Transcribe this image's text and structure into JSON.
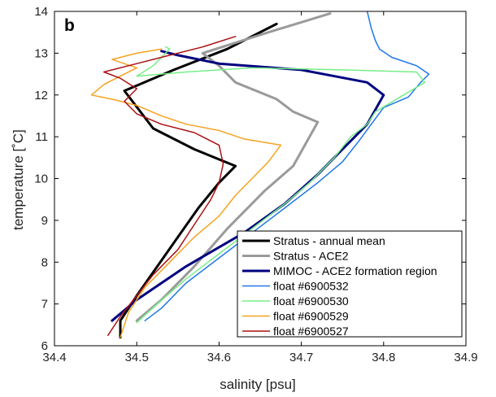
{
  "chart_data": {
    "type": "line",
    "panel_label": "b",
    "xlabel": "salinity [psu]",
    "ylabel": "temperature [˚C]",
    "xlim": [
      34.4,
      34.9
    ],
    "ylim": [
      6,
      14
    ],
    "xticks": [
      "34.4",
      "34.5",
      "34.6",
      "34.7",
      "34.8",
      "34.9"
    ],
    "yticks": [
      "6",
      "7",
      "8",
      "9",
      "10",
      "11",
      "12",
      "13",
      "14"
    ],
    "grid": false,
    "legend_position": "bottom-right",
    "series": [
      {
        "name": "Stratus - annual mean",
        "color": "#000000",
        "width": 3,
        "points": [
          [
            34.48,
            6.2
          ],
          [
            34.48,
            6.6
          ],
          [
            34.5,
            7.2
          ],
          [
            34.525,
            7.9
          ],
          [
            34.55,
            8.6
          ],
          [
            34.575,
            9.3
          ],
          [
            34.6,
            9.9
          ],
          [
            34.62,
            10.3
          ],
          [
            34.57,
            10.7
          ],
          [
            34.52,
            11.2
          ],
          [
            34.485,
            12.1
          ],
          [
            34.545,
            12.6
          ],
          [
            34.61,
            13.1
          ],
          [
            34.67,
            13.7
          ]
        ]
      },
      {
        "name": "Stratus - ACE2",
        "color": "#9a9a9a",
        "width": 3,
        "points": [
          [
            34.5,
            6.6
          ],
          [
            34.53,
            7.1
          ],
          [
            34.57,
            7.9
          ],
          [
            34.61,
            8.8
          ],
          [
            34.655,
            9.7
          ],
          [
            34.69,
            10.3
          ],
          [
            34.7,
            10.65
          ],
          [
            34.72,
            11.35
          ],
          [
            34.69,
            11.6
          ],
          [
            34.67,
            11.9
          ],
          [
            34.62,
            12.3
          ],
          [
            34.6,
            12.7
          ],
          [
            34.58,
            13.0
          ],
          [
            34.66,
            13.5
          ],
          [
            34.735,
            13.95
          ]
        ]
      },
      {
        "name": "MIMOC - ACE2 formation region",
        "color": "#00007f",
        "width": 3,
        "points": [
          [
            34.47,
            6.6
          ],
          [
            34.5,
            7.1
          ],
          [
            34.56,
            7.9
          ],
          [
            34.63,
            8.7
          ],
          [
            34.68,
            9.4
          ],
          [
            34.72,
            10.1
          ],
          [
            34.75,
            10.7
          ],
          [
            34.78,
            11.3
          ],
          [
            34.8,
            12.0
          ],
          [
            34.78,
            12.3
          ],
          [
            34.7,
            12.6
          ],
          [
            34.6,
            12.75
          ],
          [
            34.55,
            12.95
          ],
          [
            34.53,
            13.05
          ]
        ]
      },
      {
        "name": "float #6900532",
        "color": "#1f77e8",
        "width": 1.5,
        "points": [
          [
            34.51,
            6.6
          ],
          [
            34.53,
            6.9
          ],
          [
            34.56,
            7.5
          ],
          [
            34.6,
            8.1
          ],
          [
            34.64,
            8.7
          ],
          [
            34.68,
            9.3
          ],
          [
            34.72,
            9.9
          ],
          [
            34.75,
            10.4
          ],
          [
            34.77,
            10.9
          ],
          [
            34.785,
            11.3
          ],
          [
            34.8,
            11.7
          ],
          [
            34.83,
            11.95
          ],
          [
            34.845,
            12.3
          ],
          [
            34.855,
            12.5
          ],
          [
            34.84,
            12.7
          ],
          [
            34.81,
            12.9
          ],
          [
            34.795,
            13.1
          ],
          [
            34.79,
            13.3
          ],
          [
            34.785,
            13.6
          ],
          [
            34.78,
            14.0
          ]
        ]
      },
      {
        "name": "float #6900530",
        "color": "#77ee88",
        "width": 1.5,
        "points": [
          [
            34.5,
            6.55
          ],
          [
            34.525,
            7.0
          ],
          [
            34.56,
            7.6
          ],
          [
            34.6,
            8.2
          ],
          [
            34.64,
            8.8
          ],
          [
            34.68,
            9.4
          ],
          [
            34.71,
            9.9
          ],
          [
            34.74,
            10.5
          ],
          [
            34.76,
            11.0
          ],
          [
            34.78,
            11.3
          ],
          [
            34.79,
            11.6
          ],
          [
            34.82,
            11.95
          ],
          [
            34.85,
            12.3
          ],
          [
            34.84,
            12.55
          ],
          [
            34.75,
            12.6
          ],
          [
            34.64,
            12.65
          ],
          [
            34.56,
            12.55
          ],
          [
            34.5,
            12.45
          ],
          [
            34.52,
            12.7
          ],
          [
            34.54,
            13.1
          ],
          [
            34.535,
            13.15
          ]
        ]
      },
      {
        "name": "float #6900529",
        "color": "#f5a321",
        "width": 1.5,
        "points": [
          [
            34.48,
            6.2
          ],
          [
            34.49,
            6.8
          ],
          [
            34.51,
            7.4
          ],
          [
            34.54,
            8.0
          ],
          [
            34.57,
            8.6
          ],
          [
            34.6,
            9.1
          ],
          [
            34.62,
            9.6
          ],
          [
            34.64,
            10.0
          ],
          [
            34.66,
            10.4
          ],
          [
            34.675,
            10.8
          ],
          [
            34.63,
            10.95
          ],
          [
            34.6,
            11.15
          ],
          [
            34.56,
            11.3
          ],
          [
            34.53,
            11.5
          ],
          [
            34.5,
            11.75
          ],
          [
            34.47,
            11.9
          ],
          [
            34.445,
            12.0
          ],
          [
            34.46,
            12.25
          ],
          [
            34.48,
            12.45
          ],
          [
            34.5,
            12.65
          ],
          [
            34.47,
            12.85
          ],
          [
            34.5,
            13.0
          ],
          [
            34.53,
            13.1
          ]
        ]
      },
      {
        "name": "float #6900527",
        "color": "#aa1111",
        "width": 1.5,
        "points": [
          [
            34.465,
            6.25
          ],
          [
            34.48,
            6.7
          ],
          [
            34.5,
            7.2
          ],
          [
            34.52,
            7.7
          ],
          [
            34.55,
            8.3
          ],
          [
            34.57,
            8.9
          ],
          [
            34.59,
            9.5
          ],
          [
            34.6,
            9.9
          ],
          [
            34.605,
            10.35
          ],
          [
            34.6,
            10.8
          ],
          [
            34.57,
            11.1
          ],
          [
            34.53,
            11.3
          ],
          [
            34.5,
            11.55
          ],
          [
            34.485,
            11.85
          ],
          [
            34.5,
            12.15
          ],
          [
            34.48,
            12.4
          ],
          [
            34.46,
            12.55
          ],
          [
            34.5,
            12.75
          ],
          [
            34.54,
            12.95
          ],
          [
            34.58,
            13.15
          ],
          [
            34.62,
            13.4
          ]
        ]
      }
    ]
  }
}
